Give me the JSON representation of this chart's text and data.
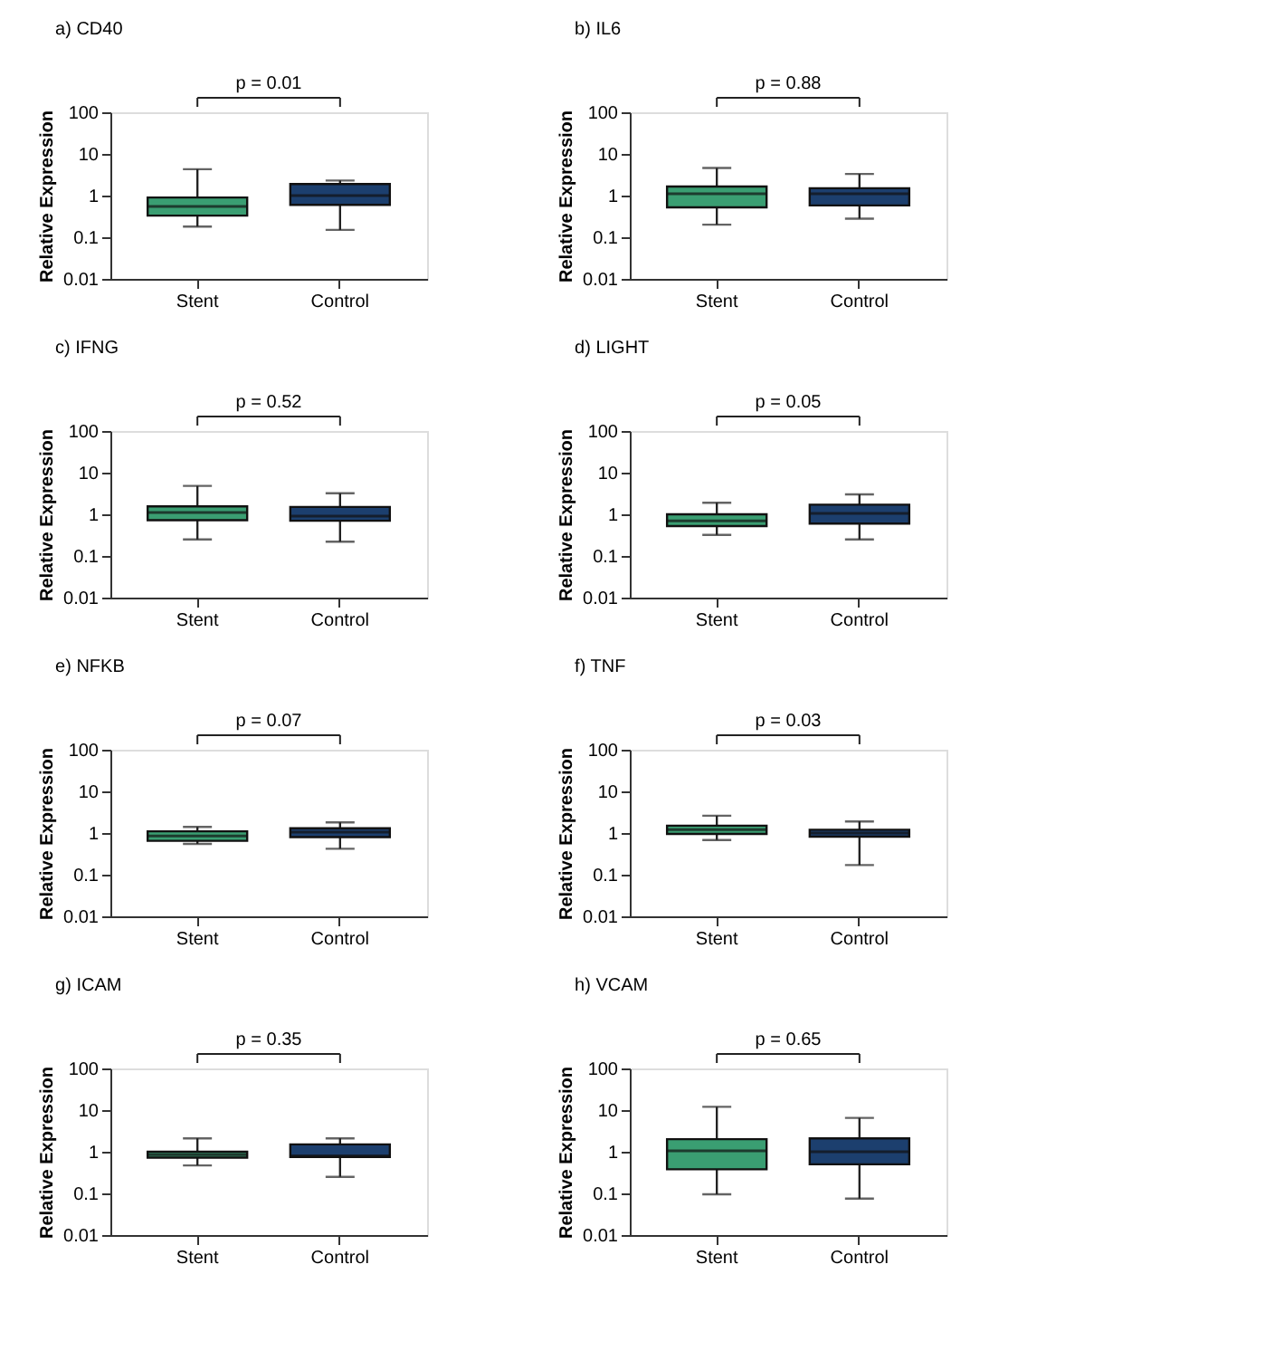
{
  "chart_data": [
    {
      "type": "box",
      "title": "a) CD40",
      "ylabel": "Relative Expression",
      "categories": [
        "Stent",
        "Control"
      ],
      "colors": [
        "#3a9e72",
        "#1c3f6e"
      ],
      "annotations": [
        "p = 0.01"
      ],
      "log": true,
      "grid": false,
      "ylim": [
        0.01,
        100
      ],
      "yticks": [
        0.01,
        0.1,
        1,
        10,
        100
      ],
      "boxes": [
        {
          "low": 0.18,
          "q1": 0.33,
          "median": 0.55,
          "q3": 0.9,
          "high": 4.3
        },
        {
          "low": 0.15,
          "q1": 0.6,
          "median": 1.0,
          "q3": 1.9,
          "high": 2.3
        }
      ]
    },
    {
      "type": "box",
      "title": "b) IL6",
      "ylabel": "Relative Expression",
      "categories": [
        "Stent",
        "Control"
      ],
      "colors": [
        "#3a9e72",
        "#1c3f6e"
      ],
      "annotations": [
        "p = 0.88"
      ],
      "log": true,
      "grid": false,
      "ylim": [
        0.01,
        100
      ],
      "yticks": [
        0.01,
        0.1,
        1,
        10,
        100
      ],
      "boxes": [
        {
          "low": 0.2,
          "q1": 0.52,
          "median": 1.1,
          "q3": 1.65,
          "high": 4.6
        },
        {
          "low": 0.28,
          "q1": 0.58,
          "median": 1.1,
          "q3": 1.5,
          "high": 3.3
        }
      ]
    },
    {
      "type": "box",
      "title": "c) IFNG",
      "ylabel": "Relative Expression",
      "categories": [
        "Stent",
        "Control"
      ],
      "colors": [
        "#3a9e72",
        "#1c3f6e"
      ],
      "annotations": [
        "p = 0.52"
      ],
      "log": true,
      "grid": false,
      "ylim": [
        0.01,
        100
      ],
      "yticks": [
        0.01,
        0.1,
        1,
        10,
        100
      ],
      "boxes": [
        {
          "low": 0.25,
          "q1": 0.72,
          "median": 1.1,
          "q3": 1.55,
          "high": 4.8
        },
        {
          "low": 0.22,
          "q1": 0.7,
          "median": 0.9,
          "q3": 1.5,
          "high": 3.2
        }
      ]
    },
    {
      "type": "box",
      "title": "d) LIGHT",
      "ylabel": "Relative Expression",
      "categories": [
        "Stent",
        "Control"
      ],
      "colors": [
        "#3a9e72",
        "#1c3f6e"
      ],
      "annotations": [
        "p = 0.05"
      ],
      "log": true,
      "grid": false,
      "ylim": [
        0.01,
        100
      ],
      "yticks": [
        0.01,
        0.1,
        1,
        10,
        100
      ],
      "boxes": [
        {
          "low": 0.32,
          "q1": 0.52,
          "median": 0.7,
          "q3": 1.0,
          "high": 1.9
        },
        {
          "low": 0.25,
          "q1": 0.6,
          "median": 1.05,
          "q3": 1.7,
          "high": 3.0
        }
      ]
    },
    {
      "type": "box",
      "title": "e) NFKB",
      "ylabel": "Relative Expression",
      "categories": [
        "Stent",
        "Control"
      ],
      "colors": [
        "#3a9e72",
        "#1c3f6e"
      ],
      "annotations": [
        "p = 0.07"
      ],
      "log": true,
      "grid": false,
      "ylim": [
        0.01,
        100
      ],
      "yticks": [
        0.01,
        0.1,
        1,
        10,
        100
      ],
      "boxes": [
        {
          "low": 0.55,
          "q1": 0.65,
          "median": 0.85,
          "q3": 1.1,
          "high": 1.4
        },
        {
          "low": 0.42,
          "q1": 0.8,
          "median": 1.05,
          "q3": 1.3,
          "high": 1.8
        }
      ]
    },
    {
      "type": "box",
      "title": "f) TNF",
      "ylabel": "Relative Expression",
      "categories": [
        "Stent",
        "Control"
      ],
      "colors": [
        "#3a9e72",
        "#1c3f6e"
      ],
      "annotations": [
        "p = 0.03"
      ],
      "log": true,
      "grid": false,
      "ylim": [
        0.01,
        100
      ],
      "yticks": [
        0.01,
        0.1,
        1,
        10,
        100
      ],
      "boxes": [
        {
          "low": 0.68,
          "q1": 0.95,
          "median": 1.2,
          "q3": 1.5,
          "high": 2.6
        },
        {
          "low": 0.17,
          "q1": 0.82,
          "median": 1.0,
          "q3": 1.2,
          "high": 1.9
        }
      ]
    },
    {
      "type": "box",
      "title": "g) ICAM",
      "ylabel": "Relative Expression",
      "categories": [
        "Stent",
        "Control"
      ],
      "colors": [
        "#3a9e72",
        "#1c3f6e"
      ],
      "annotations": [
        "p = 0.35"
      ],
      "log": true,
      "grid": false,
      "ylim": [
        0.01,
        100
      ],
      "yticks": [
        0.01,
        0.1,
        1,
        10,
        100
      ],
      "boxes": [
        {
          "low": 0.47,
          "q1": 0.72,
          "median": 0.85,
          "q3": 1.0,
          "high": 2.1
        },
        {
          "low": 0.25,
          "q1": 0.75,
          "median": 0.8,
          "q3": 1.5,
          "high": 2.1
        }
      ]
    },
    {
      "type": "box",
      "title": "h) VCAM",
      "ylabel": "Relative Expression",
      "categories": [
        "Stent",
        "Control"
      ],
      "colors": [
        "#3a9e72",
        "#1c3f6e"
      ],
      "annotations": [
        "p = 0.65"
      ],
      "log": true,
      "grid": false,
      "ylim": [
        0.01,
        100
      ],
      "yticks": [
        0.01,
        0.1,
        1,
        10,
        100
      ],
      "boxes": [
        {
          "low": 0.095,
          "q1": 0.38,
          "median": 1.05,
          "q3": 2.0,
          "high": 12
        },
        {
          "low": 0.075,
          "q1": 0.5,
          "median": 1.0,
          "q3": 2.1,
          "high": 6.5
        }
      ]
    }
  ]
}
